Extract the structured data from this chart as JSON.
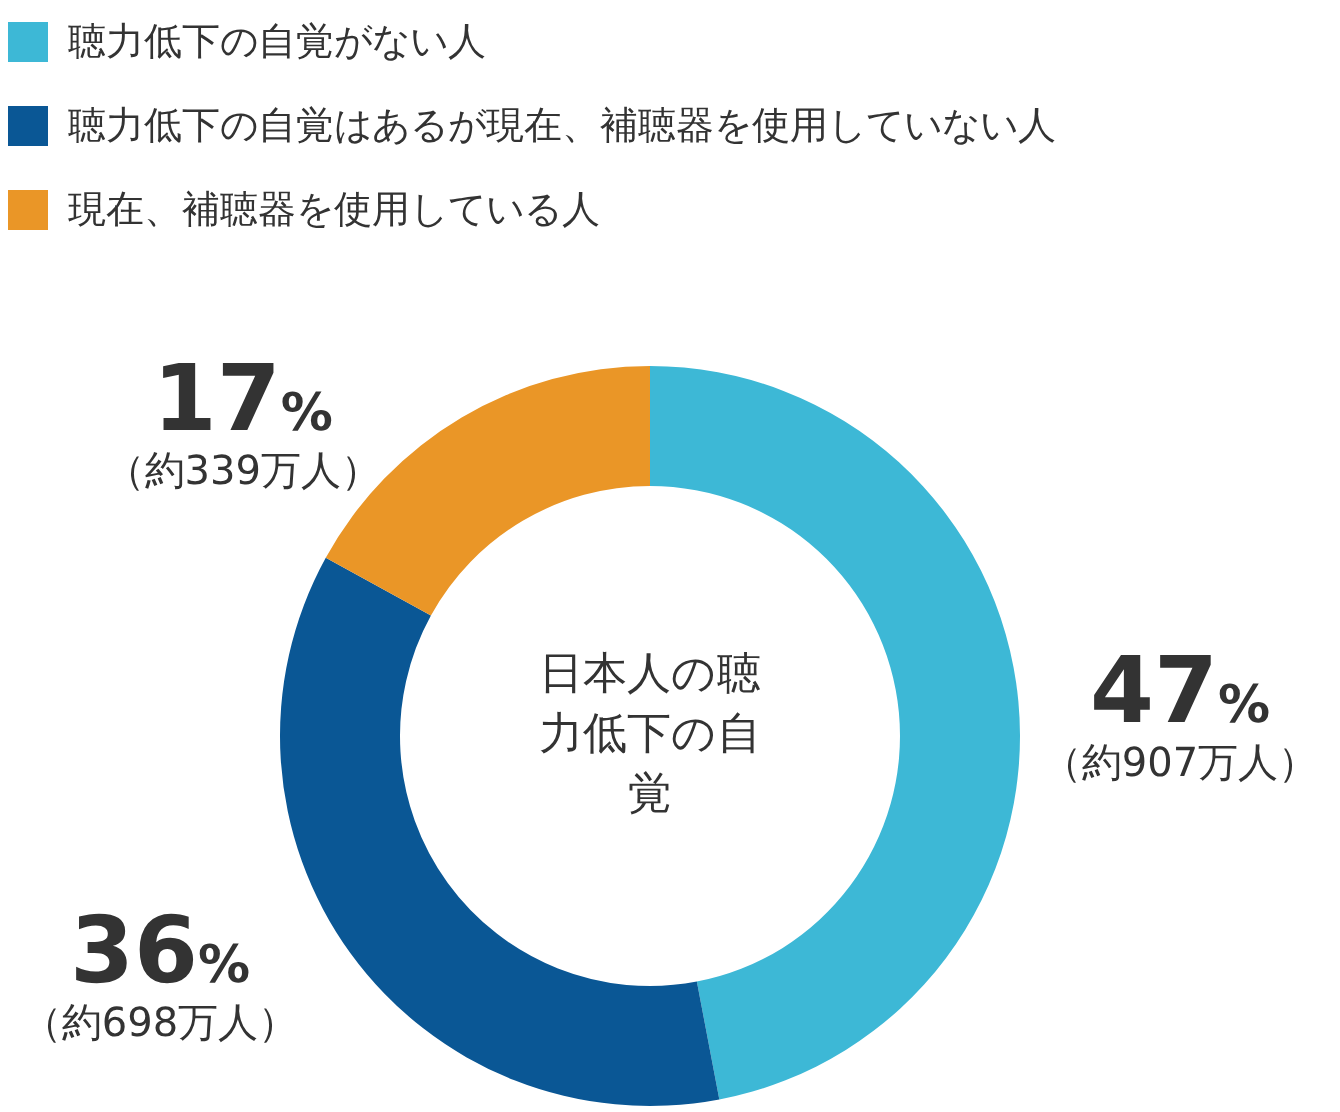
{
  "chart_data": {
    "type": "donut",
    "title": "日本人の聴力低下の自覚",
    "categories": [
      "聴力低下の自覚がない人",
      "聴力低下の自覚はあるが現在、補聴器を使用していない人",
      "現在、補聴器を使用している人"
    ],
    "values": [
      47,
      36,
      17
    ],
    "colors": [
      "#3db8d6",
      "#0a5795",
      "#ea9627"
    ],
    "value_labels": [
      "47%",
      "36%",
      "17%"
    ],
    "annotations": [
      "（約907万人）",
      "（約698万人）",
      "（約339万人）"
    ],
    "legend": "top left"
  }
}
